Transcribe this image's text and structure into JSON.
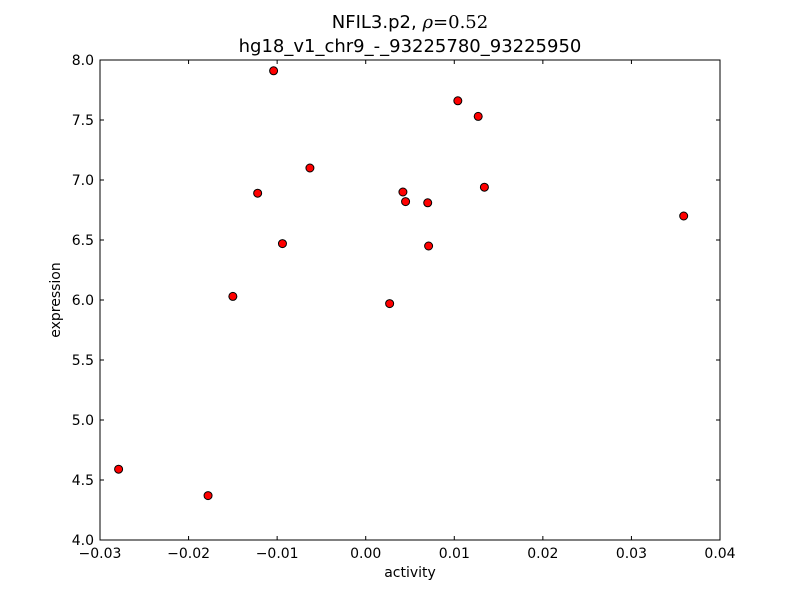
{
  "chart_data": {
    "type": "scatter",
    "title_name": "NFIL3.p2,",
    "title_rho_symbol": "ρ",
    "title_rho_value": "=0.52",
    "subtitle": "hg18_v1_chr9_-_93225780_93225950",
    "xlabel": "activity",
    "ylabel": "expression",
    "xlim": [
      -0.03,
      0.04
    ],
    "ylim": [
      4.0,
      8.0
    ],
    "xticks": [
      {
        "value": -0.03,
        "label": "−0.03"
      },
      {
        "value": -0.02,
        "label": "−0.02"
      },
      {
        "value": -0.01,
        "label": "−0.01"
      },
      {
        "value": 0.0,
        "label": "0.00"
      },
      {
        "value": 0.01,
        "label": "0.01"
      },
      {
        "value": 0.02,
        "label": "0.02"
      },
      {
        "value": 0.03,
        "label": "0.03"
      },
      {
        "value": 0.04,
        "label": "0.04"
      }
    ],
    "yticks": [
      {
        "value": 4.0,
        "label": "4.0"
      },
      {
        "value": 4.5,
        "label": "4.5"
      },
      {
        "value": 5.0,
        "label": "5.0"
      },
      {
        "value": 5.5,
        "label": "5.5"
      },
      {
        "value": 6.0,
        "label": "6.0"
      },
      {
        "value": 6.5,
        "label": "6.5"
      },
      {
        "value": 7.0,
        "label": "7.0"
      },
      {
        "value": 7.5,
        "label": "7.5"
      },
      {
        "value": 8.0,
        "label": "8.0"
      }
    ],
    "grid": false,
    "marker_color": "#ff0000",
    "marker_edge_color": "#000000",
    "points": [
      {
        "x": -0.0279,
        "y": 4.59
      },
      {
        "x": -0.0178,
        "y": 4.37
      },
      {
        "x": -0.015,
        "y": 6.03
      },
      {
        "x": -0.0122,
        "y": 6.89
      },
      {
        "x": -0.0104,
        "y": 7.91
      },
      {
        "x": -0.0094,
        "y": 6.47
      },
      {
        "x": -0.0063,
        "y": 7.1
      },
      {
        "x": 0.0027,
        "y": 5.97
      },
      {
        "x": 0.0042,
        "y": 6.9
      },
      {
        "x": 0.0045,
        "y": 6.82
      },
      {
        "x": 0.007,
        "y": 6.81
      },
      {
        "x": 0.0071,
        "y": 6.45
      },
      {
        "x": 0.0104,
        "y": 7.66
      },
      {
        "x": 0.0127,
        "y": 7.53
      },
      {
        "x": 0.0134,
        "y": 6.94
      },
      {
        "x": 0.0359,
        "y": 6.7
      }
    ]
  }
}
